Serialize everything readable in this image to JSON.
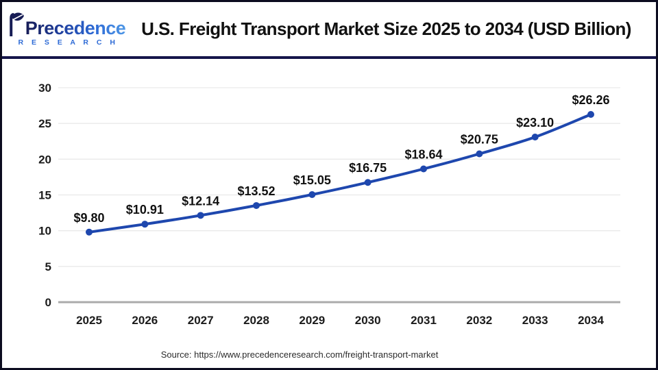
{
  "header": {
    "logo": {
      "name": "Precedence",
      "sub": "R E S E A R C H"
    },
    "title": "U.S. Freight Transport Market Size 2025 to 2034 (USD Billion)"
  },
  "chart_data": {
    "type": "line",
    "title": "U.S. Freight Transport Market Size 2025 to 2034 (USD Billion)",
    "categories": [
      "2025",
      "2026",
      "2027",
      "2028",
      "2029",
      "2030",
      "2031",
      "2032",
      "2033",
      "2034"
    ],
    "values": [
      9.8,
      10.91,
      12.14,
      13.52,
      15.05,
      16.75,
      18.64,
      20.75,
      23.1,
      26.26
    ],
    "point_labels": [
      "$9.80",
      "$10.91",
      "$12.14",
      "$13.52",
      "$15.05",
      "$16.75",
      "$18.64",
      "$20.75",
      "$23.10",
      "$26.26"
    ],
    "xlabel": "",
    "ylabel": "",
    "ylim": [
      0,
      30
    ],
    "yticks": [
      0,
      5,
      10,
      15,
      20,
      25,
      30
    ],
    "grid": true,
    "legend": "none",
    "line_color": "#1e47ae",
    "marker_color": "#1e47ae",
    "gridline_color": "#e9e9e9",
    "axis_line_color": "#ababab",
    "tick_label_color": "#1b1b1b",
    "label_color": "#111111"
  },
  "footer": {
    "source": "Source: https://www.precedenceresearch.com/freight-transport-market"
  }
}
